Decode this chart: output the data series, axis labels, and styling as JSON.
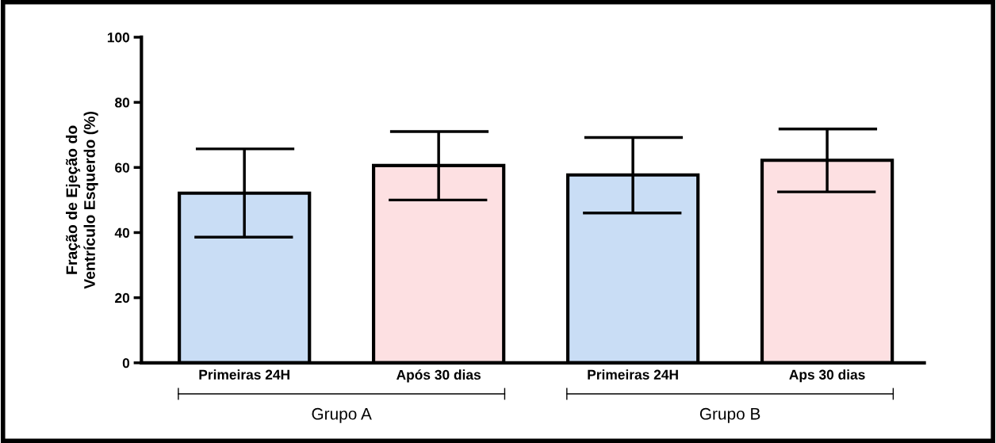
{
  "chart_data": {
    "type": "bar",
    "ylabel": "Fração de Ejeção do\nVentrículo Esquerdo (%)",
    "categories": [
      "Primeiras 24H",
      "Após 30 dias",
      "Primeiras 24H",
      "Aps 30 dias"
    ],
    "values": [
      52.1,
      60.6,
      57.7,
      62.2
    ],
    "colors": [
      "#c9ddf5",
      "#fde0e2",
      "#c9ddf5",
      "#fde0e2"
    ],
    "errors": [
      [
        38.6,
        65.7
      ],
      [
        50.0,
        71.0
      ],
      [
        46.0,
        69.2
      ],
      [
        52.5,
        71.8
      ]
    ],
    "ylim": [
      0,
      100
    ],
    "yticks": [
      0,
      20,
      40,
      60,
      80,
      100
    ],
    "annotations": [
      "Grupo A",
      "Grupo B"
    ],
    "grid": false,
    "legend": false
  }
}
